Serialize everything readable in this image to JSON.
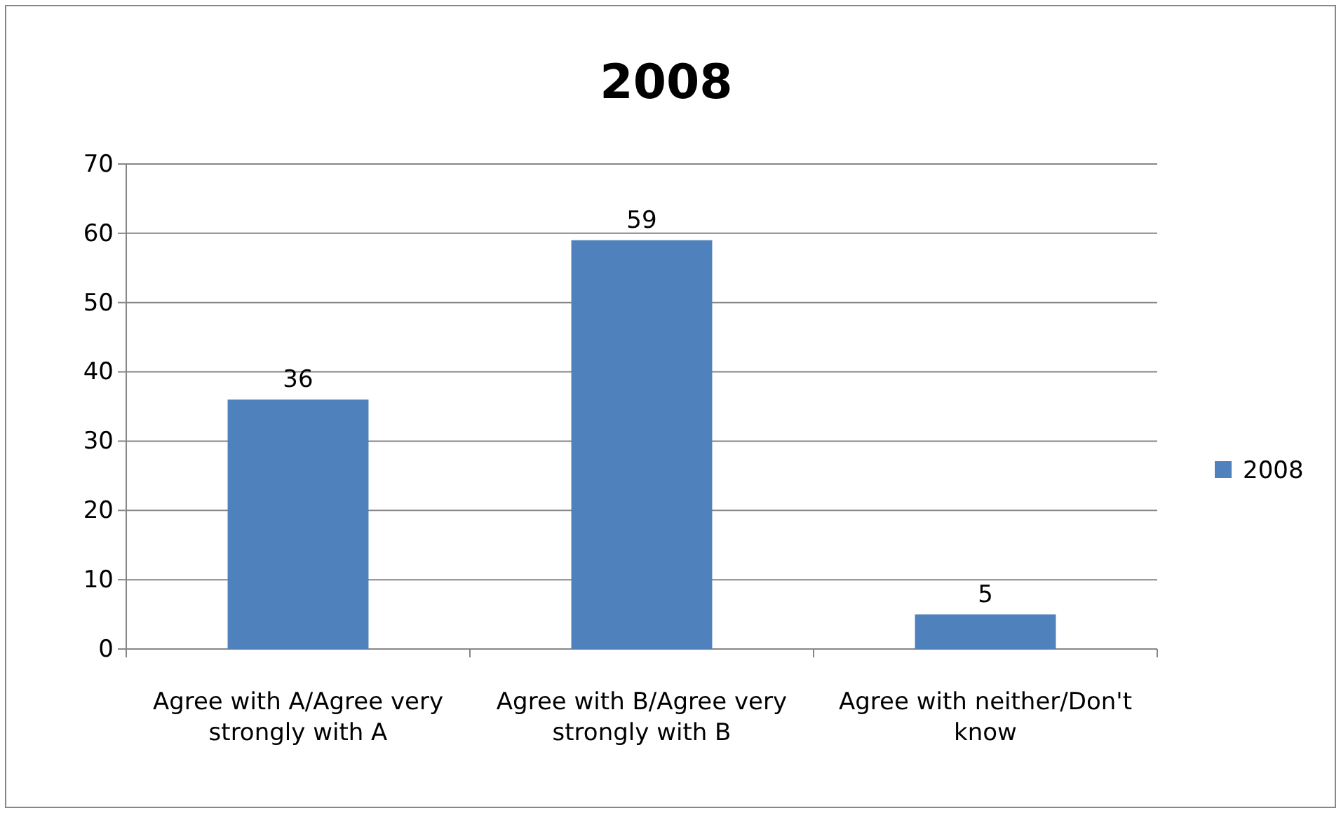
{
  "chart_data": {
    "type": "bar",
    "title": "2008",
    "categories": [
      "Agree with A/Agree very strongly with A",
      "Agree with B/Agree very strongly with B",
      "Agree with neither/Don't know"
    ],
    "series": [
      {
        "name": "2008",
        "color": "#4f81bd",
        "values": [
          36,
          59,
          5
        ]
      }
    ],
    "ylim": [
      0,
      70
    ],
    "yticks": [
      0,
      10,
      20,
      30,
      40,
      50,
      60,
      70
    ],
    "grid": "y",
    "legend": "right",
    "data_labels": true
  }
}
